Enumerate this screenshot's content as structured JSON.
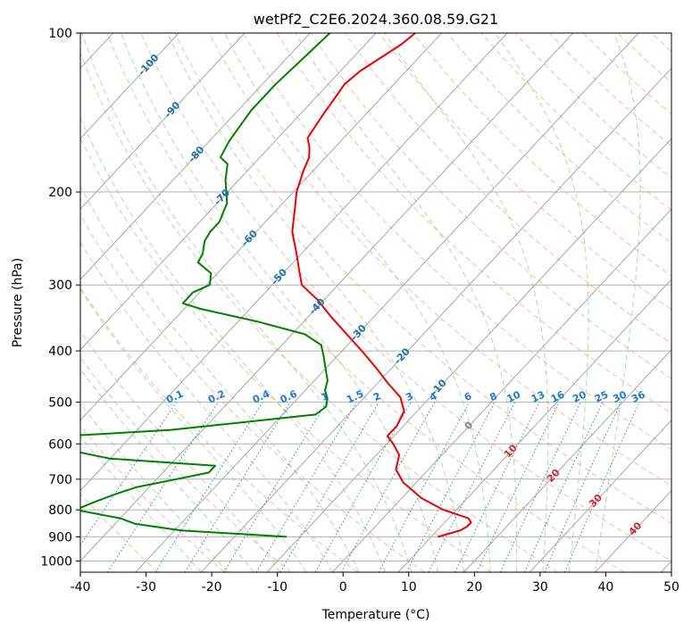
{
  "chart_data": {
    "type": "line",
    "title": "wetPf2_C2E6.2024.360.08.59.G21",
    "xlabel": "Temperature (°C)",
    "ylabel": "Pressure (hPa)",
    "xlim": [
      -40,
      50
    ],
    "ylim": [
      1050,
      100
    ],
    "y_scale": "log",
    "x_ticks": [
      "-40",
      "-30",
      "-20",
      "-10",
      "0",
      "10",
      "20",
      "30",
      "40",
      "50"
    ],
    "y_ticks": [
      "100",
      "200",
      "300",
      "400",
      "500",
      "600",
      "700",
      "800",
      "900",
      "1000"
    ],
    "grid": true,
    "skew_deg_per_log_decade": 75,
    "colors": {
      "temperature": "#ee0000",
      "dewpoint": "#008000",
      "isotherm": "#999999",
      "dry_adiabat": "#f4a582",
      "moist_adiabat": "#74c476",
      "mixing_ratio": "#1f78d4",
      "isotherm_label_blue": "#1f6fa8",
      "isotherm_label_red": "#d62728"
    },
    "series": [
      {
        "key": "temperature",
        "points": [
          [
            -64.0,
            100
          ],
          [
            -64.5,
            105
          ],
          [
            -65.5,
            110
          ],
          [
            -67.0,
            118
          ],
          [
            -67.5,
            125
          ],
          [
            -67.0,
            133
          ],
          [
            -66.5,
            142
          ],
          [
            -66.0,
            150
          ],
          [
            -65.5,
            158
          ],
          [
            -63.8,
            165
          ],
          [
            -62.5,
            172
          ],
          [
            -61.5,
            182
          ],
          [
            -59.5,
            200
          ],
          [
            -57.0,
            218
          ],
          [
            -54.5,
            238
          ],
          [
            -51.0,
            260
          ],
          [
            -47.5,
            285
          ],
          [
            -45.5,
            300
          ],
          [
            -41.0,
            320
          ],
          [
            -37.0,
            342
          ],
          [
            -32.0,
            370
          ],
          [
            -27.0,
            400
          ],
          [
            -22.5,
            430
          ],
          [
            -18.5,
            460
          ],
          [
            -14.5,
            490
          ],
          [
            -12.0,
            520
          ],
          [
            -11.0,
            555
          ],
          [
            -11.0,
            580
          ],
          [
            -9.0,
            600
          ],
          [
            -6.5,
            630
          ],
          [
            -5.0,
            670
          ],
          [
            -2.0,
            710
          ],
          [
            3.0,
            760
          ],
          [
            8.0,
            800
          ],
          [
            13.0,
            830
          ],
          [
            14.0,
            845
          ],
          [
            14.0,
            860
          ],
          [
            13.5,
            875
          ],
          [
            12.0,
            890
          ],
          [
            11.0,
            900
          ]
        ]
      },
      {
        "key": "dewpoint",
        "points": [
          [
            -77.0,
            100
          ],
          [
            -77.5,
            112
          ],
          [
            -78.0,
            125
          ],
          [
            -78.0,
            140
          ],
          [
            -77.0,
            160
          ],
          [
            -76.0,
            172
          ],
          [
            -74.0,
            177
          ],
          [
            -72.0,
            190
          ],
          [
            -68.5,
            210
          ],
          [
            -67.0,
            228
          ],
          [
            -67.0,
            238
          ],
          [
            -66.5,
            248
          ],
          [
            -65.0,
            262
          ],
          [
            -64.5,
            272
          ],
          [
            -61.0,
            285
          ],
          [
            -59.5,
            300
          ],
          [
            -61.0,
            310
          ],
          [
            -61.0,
            325
          ],
          [
            -57.5,
            333
          ],
          [
            -47.0,
            352
          ],
          [
            -38.0,
            372
          ],
          [
            -34.0,
            390
          ],
          [
            -32.0,
            410
          ],
          [
            -30.0,
            432
          ],
          [
            -28.0,
            455
          ],
          [
            -27.0,
            475
          ],
          [
            -25.5,
            492
          ],
          [
            -24.5,
            510
          ],
          [
            -25.0,
            528
          ],
          [
            -45.0,
            565
          ],
          [
            -60.0,
            580
          ],
          [
            -58.0,
            600
          ],
          [
            -58.0,
            615
          ],
          [
            -50.0,
            640
          ],
          [
            -33.0,
            660
          ],
          [
            -33.0,
            680
          ],
          [
            -37.0,
            700
          ],
          [
            -42.0,
            725
          ],
          [
            -44.0,
            745
          ],
          [
            -46.0,
            770
          ],
          [
            -48.0,
            800
          ],
          [
            -40.0,
            830
          ],
          [
            -37.0,
            850
          ],
          [
            -29.0,
            875
          ],
          [
            -12.0,
            900
          ]
        ]
      }
    ],
    "isotherm_labels": {
      "blue": [
        "-100",
        "-90",
        "-80",
        "-70",
        "-60",
        "-50",
        "-40",
        "-30",
        "-20",
        "-10"
      ],
      "gray": [
        "0"
      ],
      "red": [
        "10",
        "20",
        "30",
        "40"
      ]
    },
    "mixing_ratio_labels": [
      "0.1",
      "0.2",
      "0.4",
      "0.6",
      "1",
      "1.5",
      "2",
      "3",
      "4",
      "6",
      "8",
      "10",
      "13",
      "16",
      "20",
      "25",
      "30",
      "36"
    ]
  }
}
